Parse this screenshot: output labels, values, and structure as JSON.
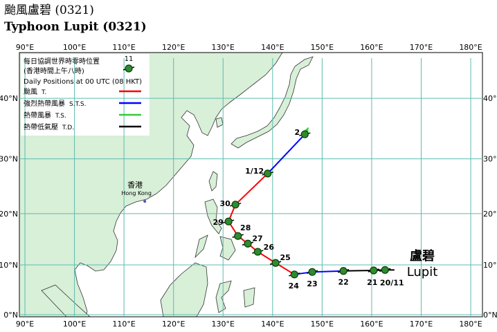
{
  "header": {
    "title_zh": "颱風盧碧 (0321)",
    "title_en": "Typhoon Lupit (0321)"
  },
  "chart_data": {
    "type": "track-map",
    "projection": "mercator",
    "xlim": [
      88.88,
      182.37
    ],
    "ylim": [
      -0.42,
      46.7
    ],
    "grid": true,
    "xticks": [
      {
        "value": 90,
        "label": "90°E"
      },
      {
        "value": 100,
        "label": "100°E"
      },
      {
        "value": 110,
        "label": "110°E"
      },
      {
        "value": 120,
        "label": "120°E"
      },
      {
        "value": 130,
        "label": "130°E"
      },
      {
        "value": 140,
        "label": "140°E"
      },
      {
        "value": 150,
        "label": "150°E"
      },
      {
        "value": 160,
        "label": "160°E"
      },
      {
        "value": 170,
        "label": "170°E"
      },
      {
        "value": 180,
        "label": "180°E"
      }
    ],
    "yticks": [
      {
        "value": 0,
        "label": "0°N"
      },
      {
        "value": 10,
        "label": "10°N"
      },
      {
        "value": 20,
        "label": "20°N"
      },
      {
        "value": 30,
        "label": "30°N"
      },
      {
        "value": 40,
        "label": "40°N"
      }
    ],
    "legend": {
      "title_zh": "每日協調世界時零時位置",
      "subtitle_zh": "(香港時間上午八時)",
      "sample_label": "11",
      "title_en": "Daily Positions at 00 UTC (08 HKT)",
      "entries": [
        {
          "name": "颱風",
          "abbr": "T.",
          "color": "#ff0000"
        },
        {
          "name": "強烈熱帶風暴",
          "abbr": "S.T.S.",
          "color": "#0000ff"
        },
        {
          "name": "熱帶風暴",
          "abbr": "T.S.",
          "color": "#33cc33"
        },
        {
          "name": "熱帶低氣壓",
          "abbr": "T.D.",
          "color": "#000000"
        }
      ]
    },
    "track": {
      "name_zh": "盧碧",
      "name_en": "Lupit",
      "points": [
        {
          "label": null,
          "lon": 164.6,
          "lat": 9.0,
          "class": "T.D."
        },
        {
          "label": "20/11",
          "lon": 162.7,
          "lat": 9.0,
          "class": "T.D."
        },
        {
          "label": "21",
          "lon": 160.4,
          "lat": 8.9,
          "class": "T.D."
        },
        {
          "label": "22",
          "lon": 154.3,
          "lat": 8.8,
          "class": "S.T.S."
        },
        {
          "label": "23",
          "lon": 148.0,
          "lat": 8.6,
          "class": "S.T.S."
        },
        {
          "label": "24",
          "lon": 144.4,
          "lat": 8.1,
          "class": "T."
        },
        {
          "label": "25",
          "lon": 140.6,
          "lat": 10.4,
          "class": "T."
        },
        {
          "label": "26",
          "lon": 137.0,
          "lat": 12.6,
          "class": "T."
        },
        {
          "label": "27",
          "lon": 135.0,
          "lat": 14.2,
          "class": "T."
        },
        {
          "label": "28",
          "lon": 133.0,
          "lat": 15.7,
          "class": "T."
        },
        {
          "label": "29",
          "lon": 131.1,
          "lat": 18.5,
          "class": "T."
        },
        {
          "label": "30",
          "lon": 132.5,
          "lat": 21.7,
          "class": "T."
        },
        {
          "label": "1/12",
          "lon": 139.0,
          "lat": 27.4,
          "class": "S.T.S."
        },
        {
          "label": "2",
          "lon": 146.5,
          "lat": 34.2,
          "class": "T.S."
        },
        {
          "label": null,
          "lon": 147.2,
          "lat": 35.3,
          "class": "T.S."
        }
      ]
    },
    "places": [
      {
        "name_zh": "香港",
        "name_en": "Hong Kong",
        "lon": 114.2,
        "lat": 22.3
      }
    ]
  }
}
